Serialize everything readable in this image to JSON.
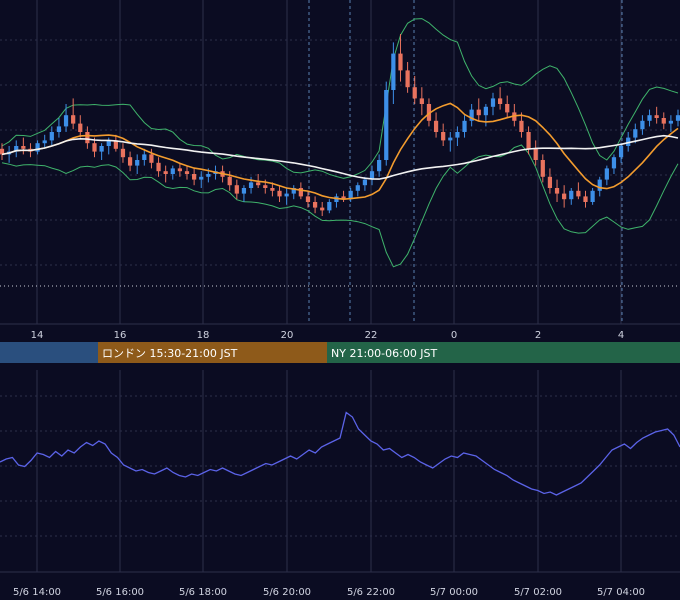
{
  "colors": {
    "background": "#0b0c22",
    "grid": "#2c2f4a",
    "candle_up": "#3d8fe8",
    "candle_down": "#e9735e",
    "bollinger": "#3fb36b",
    "ma_short": "#f39c2e",
    "ma_long": "#f2f2f2",
    "oscillator": "#5b63e8",
    "session_tokyo": "#2a4f7e",
    "session_london": "#8e5a1a",
    "session_ny": "#236448"
  },
  "chart_data": [
    {
      "type": "candlestick",
      "panel": "price",
      "x_tick_labels": [
        "14",
        "16",
        "18",
        "20",
        "22",
        "0",
        "2",
        "4"
      ],
      "price_range": [
        0,
        100
      ],
      "candles_note_unit": "relative price",
      "candles": [
        [
          54,
          56,
          50,
          52
        ],
        [
          52,
          55,
          49,
          53
        ],
        [
          53,
          57,
          51,
          55
        ],
        [
          55,
          58,
          52,
          54
        ],
        [
          54,
          56,
          51,
          53
        ],
        [
          53,
          57,
          52,
          56
        ],
        [
          56,
          59,
          54,
          57
        ],
        [
          57,
          62,
          55,
          60
        ],
        [
          60,
          65,
          58,
          62
        ],
        [
          62,
          70,
          60,
          66
        ],
        [
          66,
          72,
          61,
          63
        ],
        [
          63,
          66,
          58,
          60
        ],
        [
          60,
          62,
          54,
          56
        ],
        [
          56,
          58,
          51,
          53
        ],
        [
          53,
          56,
          50,
          55
        ],
        [
          55,
          58,
          52,
          57
        ],
        [
          57,
          59,
          53,
          54
        ],
        [
          54,
          56,
          49,
          51
        ],
        [
          51,
          53,
          46,
          48
        ],
        [
          48,
          52,
          45,
          50
        ],
        [
          50,
          54,
          48,
          52
        ],
        [
          52,
          54,
          47,
          49
        ],
        [
          49,
          51,
          44,
          46
        ],
        [
          46,
          48,
          42,
          45
        ],
        [
          45,
          48,
          43,
          47
        ],
        [
          47,
          49,
          44,
          46
        ],
        [
          46,
          48,
          43,
          45
        ],
        [
          45,
          47,
          41,
          43
        ],
        [
          43,
          46,
          40,
          44
        ],
        [
          44,
          47,
          42,
          45
        ],
        [
          45,
          48,
          43,
          46
        ],
        [
          46,
          48,
          42,
          44
        ],
        [
          44,
          46,
          39,
          41
        ],
        [
          41,
          43,
          36,
          38
        ],
        [
          38,
          41,
          35,
          40
        ],
        [
          40,
          44,
          38,
          42
        ],
        [
          42,
          45,
          40,
          41
        ],
        [
          41,
          43,
          38,
          40
        ],
        [
          40,
          42,
          37,
          39
        ],
        [
          39,
          41,
          35,
          37
        ],
        [
          37,
          40,
          34,
          38
        ],
        [
          38,
          41,
          36,
          40
        ],
        [
          40,
          42,
          36,
          37
        ],
        [
          37,
          39,
          33,
          35
        ],
        [
          35,
          37,
          31,
          33
        ],
        [
          33,
          35,
          30,
          32
        ],
        [
          32,
          36,
          31,
          35
        ],
        [
          35,
          38,
          33,
          37
        ],
        [
          37,
          39,
          35,
          36
        ],
        [
          36,
          40,
          35,
          39
        ],
        [
          39,
          42,
          37,
          41
        ],
        [
          41,
          44,
          39,
          43
        ],
        [
          43,
          48,
          41,
          46
        ],
        [
          46,
          52,
          44,
          50
        ],
        [
          50,
          78,
          48,
          75
        ],
        [
          75,
          92,
          70,
          88
        ],
        [
          88,
          95,
          78,
          82
        ],
        [
          82,
          85,
          74,
          76
        ],
        [
          76,
          80,
          70,
          72
        ],
        [
          72,
          76,
          66,
          70
        ],
        [
          70,
          72,
          62,
          64
        ],
        [
          64,
          67,
          58,
          60
        ],
        [
          60,
          63,
          55,
          57
        ],
        [
          57,
          60,
          53,
          58
        ],
        [
          58,
          62,
          55,
          60
        ],
        [
          60,
          66,
          58,
          64
        ],
        [
          64,
          70,
          62,
          68
        ],
        [
          68,
          72,
          64,
          66
        ],
        [
          66,
          70,
          62,
          69
        ],
        [
          69,
          74,
          66,
          72
        ],
        [
          72,
          76,
          68,
          70
        ],
        [
          70,
          73,
          65,
          67
        ],
        [
          67,
          70,
          62,
          64
        ],
        [
          64,
          67,
          58,
          60
        ],
        [
          60,
          62,
          52,
          54
        ],
        [
          54,
          57,
          48,
          50
        ],
        [
          50,
          52,
          42,
          44
        ],
        [
          44,
          47,
          38,
          40
        ],
        [
          40,
          43,
          35,
          38
        ],
        [
          38,
          41,
          33,
          36
        ],
        [
          36,
          40,
          34,
          39
        ],
        [
          39,
          42,
          36,
          37
        ],
        [
          37,
          39,
          33,
          35
        ],
        [
          35,
          40,
          34,
          39
        ],
        [
          39,
          44,
          37,
          43
        ],
        [
          43,
          48,
          41,
          47
        ],
        [
          47,
          52,
          45,
          51
        ],
        [
          51,
          56,
          49,
          55
        ],
        [
          55,
          60,
          53,
          58
        ],
        [
          58,
          63,
          56,
          61
        ],
        [
          61,
          66,
          59,
          64
        ],
        [
          64,
          68,
          62,
          66
        ],
        [
          66,
          69,
          63,
          65
        ],
        [
          65,
          67,
          61,
          63
        ],
        [
          63,
          66,
          60,
          64
        ],
        [
          64,
          68,
          62,
          66
        ]
      ]
    },
    {
      "type": "table",
      "panel": "sessions",
      "sessions": [
        {
          "label": "",
          "color": "#2a4f7e"
        },
        {
          "label": "ロンドン 15:30-21:00 JST",
          "color": "#8e5a1a"
        },
        {
          "label": "NY 21:00-06:00 JST",
          "color": "#236448"
        }
      ]
    },
    {
      "type": "line",
      "panel": "oscillator",
      "x_tick_labels": [
        "5/6 14:00",
        "5/6 16:00",
        "5/6 18:00",
        "5/6 20:00",
        "5/6 22:00",
        "5/7 00:00",
        "5/7 02:00",
        "5/7 04:00"
      ],
      "ylim": [
        0,
        100
      ],
      "values": [
        52,
        54,
        55,
        50,
        49,
        53,
        58,
        57,
        55,
        59,
        56,
        60,
        58,
        62,
        65,
        63,
        66,
        64,
        58,
        55,
        50,
        48,
        46,
        47,
        45,
        44,
        46,
        48,
        45,
        43,
        42,
        44,
        43,
        45,
        47,
        46,
        48,
        46,
        44,
        43,
        45,
        47,
        49,
        51,
        50,
        52,
        54,
        56,
        54,
        57,
        60,
        58,
        62,
        64,
        66,
        68,
        85,
        82,
        74,
        70,
        66,
        64,
        60,
        61,
        58,
        55,
        57,
        55,
        52,
        50,
        48,
        51,
        54,
        56,
        55,
        58,
        57,
        56,
        53,
        50,
        47,
        45,
        43,
        40,
        38,
        36,
        34,
        33,
        31,
        32,
        30,
        32,
        34,
        36,
        38,
        42,
        46,
        50,
        55,
        60,
        62,
        64,
        61,
        65,
        68,
        70,
        72,
        73,
        74,
        70,
        62
      ]
    }
  ]
}
